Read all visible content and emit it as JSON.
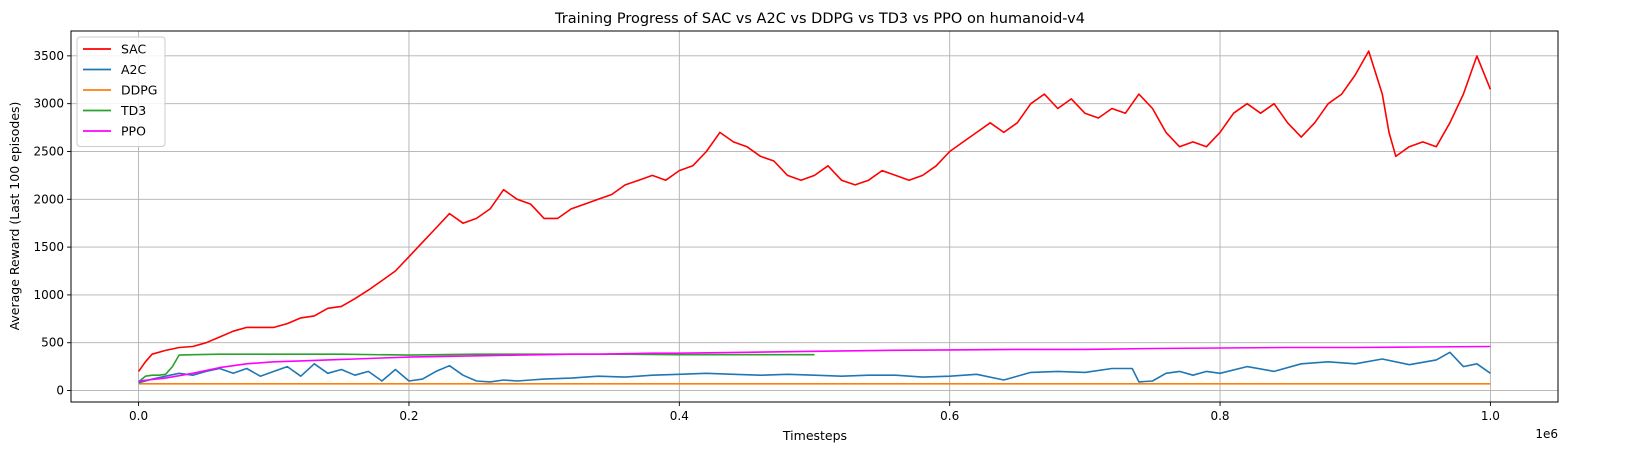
{
  "chart_data": {
    "type": "line",
    "title": "Training Progress of SAC vs A2C vs DDPG vs TD3 vs PPO on humanoid-v4",
    "xlabel": "Timesteps",
    "ylabel": "Average Reward (Last 100 episodes)",
    "x_offset_label": "1e6",
    "x_scale": 1000000,
    "xlim": [
      -50000,
      1050000
    ],
    "ylim": [
      -120,
      3760
    ],
    "xticks": [
      0,
      200000,
      400000,
      600000,
      800000,
      1000000
    ],
    "xtick_labels": [
      "0.0",
      "0.2",
      "0.4",
      "0.6",
      "0.8",
      "1.0"
    ],
    "yticks": [
      0,
      500,
      1000,
      1500,
      2000,
      2500,
      3000,
      3500
    ],
    "ytick_labels": [
      "0",
      "500",
      "1000",
      "1500",
      "2000",
      "2500",
      "3000",
      "3500"
    ],
    "grid": true,
    "legend_position": "top-left",
    "series": [
      {
        "name": "SAC",
        "color": "#ff0000",
        "x": [
          0,
          5000,
          10000,
          20000,
          30000,
          40000,
          50000,
          60000,
          70000,
          80000,
          90000,
          100000,
          110000,
          120000,
          130000,
          140000,
          150000,
          160000,
          170000,
          180000,
          190000,
          200000,
          210000,
          220000,
          230000,
          240000,
          250000,
          260000,
          270000,
          280000,
          290000,
          300000,
          310000,
          320000,
          330000,
          340000,
          350000,
          360000,
          370000,
          380000,
          390000,
          400000,
          410000,
          420000,
          430000,
          440000,
          450000,
          460000,
          470000,
          480000,
          490000,
          500000,
          510000,
          520000,
          530000,
          540000,
          550000,
          560000,
          570000,
          580000,
          590000,
          600000,
          610000,
          620000,
          630000,
          640000,
          650000,
          660000,
          670000,
          680000,
          690000,
          700000,
          710000,
          720000,
          730000,
          740000,
          750000,
          760000,
          770000,
          780000,
          790000,
          800000,
          810000,
          820000,
          830000,
          840000,
          850000,
          860000,
          870000,
          880000,
          890000,
          900000,
          910000,
          920000,
          925000,
          930000,
          940000,
          950000,
          960000,
          970000,
          980000,
          990000,
          1000000
        ],
        "y": [
          200,
          300,
          380,
          420,
          450,
          460,
          500,
          560,
          620,
          660,
          660,
          660,
          700,
          760,
          780,
          860,
          880,
          960,
          1050,
          1150,
          1250,
          1400,
          1550,
          1700,
          1850,
          1750,
          1800,
          1900,
          2100,
          2000,
          1950,
          1800,
          1800,
          1900,
          1950,
          2000,
          2050,
          2150,
          2200,
          2250,
          2200,
          2300,
          2350,
          2500,
          2700,
          2600,
          2550,
          2450,
          2400,
          2250,
          2200,
          2250,
          2350,
          2200,
          2150,
          2200,
          2300,
          2250,
          2200,
          2250,
          2350,
          2500,
          2600,
          2700,
          2800,
          2700,
          2800,
          3000,
          3100,
          2950,
          3050,
          2900,
          2850,
          2950,
          2900,
          3100,
          2950,
          2700,
          2550,
          2600,
          2550,
          2700,
          2900,
          3000,
          2900,
          3000,
          2800,
          2650,
          2800,
          3000,
          3100,
          3300,
          3550,
          3100,
          2700,
          2450,
          2550,
          2600,
          2550,
          2800,
          3100,
          3500,
          3150
        ]
      },
      {
        "name": "A2C",
        "color": "#1f77b4",
        "x": [
          0,
          10000,
          20000,
          30000,
          40000,
          50000,
          60000,
          70000,
          80000,
          90000,
          100000,
          110000,
          120000,
          130000,
          140000,
          150000,
          160000,
          170000,
          180000,
          190000,
          200000,
          210000,
          220000,
          230000,
          240000,
          250000,
          260000,
          270000,
          280000,
          290000,
          300000,
          320000,
          340000,
          360000,
          380000,
          400000,
          420000,
          440000,
          460000,
          480000,
          500000,
          520000,
          540000,
          560000,
          580000,
          600000,
          620000,
          640000,
          660000,
          680000,
          700000,
          720000,
          735000,
          740000,
          750000,
          760000,
          770000,
          780000,
          790000,
          800000,
          820000,
          840000,
          860000,
          880000,
          900000,
          920000,
          940000,
          960000,
          970000,
          980000,
          990000,
          1000000
        ],
        "y": [
          80,
          120,
          150,
          180,
          160,
          200,
          230,
          180,
          230,
          150,
          200,
          250,
          150,
          280,
          180,
          220,
          160,
          200,
          100,
          220,
          100,
          120,
          200,
          260,
          160,
          100,
          90,
          110,
          100,
          110,
          120,
          130,
          150,
          140,
          160,
          170,
          180,
          170,
          160,
          170,
          160,
          150,
          160,
          160,
          140,
          150,
          170,
          110,
          190,
          200,
          190,
          230,
          230,
          90,
          100,
          180,
          200,
          160,
          200,
          180,
          250,
          200,
          280,
          300,
          280,
          330,
          270,
          320,
          400,
          250,
          280,
          180
        ]
      },
      {
        "name": "DDPG",
        "color": "#ff7f0e",
        "x": [
          0,
          1000000
        ],
        "y": [
          70,
          70
        ]
      },
      {
        "name": "TD3",
        "color": "#2ca02c",
        "x": [
          0,
          5000,
          10000,
          15000,
          20000,
          25000,
          30000,
          40000,
          60000,
          80000,
          100000,
          150000,
          200000,
          250000,
          300000,
          350000,
          400000,
          450000,
          500000
        ],
        "y": [
          90,
          150,
          160,
          160,
          170,
          250,
          370,
          375,
          380,
          380,
          380,
          380,
          370,
          380,
          380,
          380,
          375,
          375,
          375
        ]
      },
      {
        "name": "PPO",
        "color": "#ff00ff",
        "x": [
          0,
          20000,
          40000,
          60000,
          80000,
          100000,
          120000,
          140000,
          160000,
          180000,
          200000,
          220000,
          240000,
          260000,
          280000,
          300000,
          320000,
          340000,
          360000,
          380000,
          400000,
          450000,
          500000,
          550000,
          600000,
          650000,
          700000,
          750000,
          800000,
          850000,
          900000,
          950000,
          1000000
        ],
        "y": [
          100,
          130,
          180,
          240,
          280,
          300,
          310,
          320,
          330,
          340,
          350,
          355,
          360,
          365,
          370,
          375,
          380,
          380,
          385,
          390,
          390,
          400,
          410,
          420,
          425,
          430,
          430,
          440,
          445,
          450,
          450,
          455,
          460
        ]
      }
    ]
  }
}
